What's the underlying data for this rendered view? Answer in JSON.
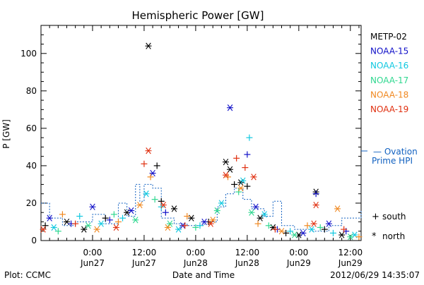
{
  "chart_data": {
    "type": "scatter",
    "title": "Hemispheric Power [GW]",
    "xlabel": "Date and Time",
    "ylabel": "P [GW]",
    "ylim": [
      0,
      115
    ],
    "xlim": [
      "2012-06-26 12:00",
      "2012-06-29 14:30"
    ],
    "grid": false,
    "y_ticks": [
      0,
      20,
      40,
      60,
      80,
      100
    ],
    "x_ticks": [
      {
        "t": "2012-06-27 00:00",
        "time": "0:00",
        "date": "Jun27"
      },
      {
        "t": "2012-06-27 12:00",
        "time": "12:00",
        "date": "Jun27"
      },
      {
        "t": "2012-06-28 00:00",
        "time": "0:00",
        "date": "Jun28"
      },
      {
        "t": "2012-06-28 12:00",
        "time": "12:00",
        "date": "Jun28"
      },
      {
        "t": "2012-06-29 00:00",
        "time": "0:00",
        "date": "Jun29"
      },
      {
        "t": "2012-06-29 12:00",
        "time": "12:00",
        "date": "Jun29"
      }
    ],
    "legend": {
      "placement": "right",
      "satellites": [
        {
          "name": "METP-02",
          "color": "#000000"
        },
        {
          "name": "NOAA-15",
          "color": "#1010c8"
        },
        {
          "name": "NOAA-16",
          "color": "#10c8e0"
        },
        {
          "name": "NOAA-17",
          "color": "#30d890"
        },
        {
          "name": "NOAA-18",
          "color": "#f08820"
        },
        {
          "name": "NOAA-19",
          "color": "#e03010"
        }
      ],
      "ovation": {
        "line1": "— Ovation",
        "line2": "Prime HPI",
        "color": "#1060c0"
      },
      "markers": [
        {
          "symbol": "+",
          "label": "south"
        },
        {
          "symbol": "*",
          "label": "north"
        }
      ]
    },
    "series": [
      {
        "name": "METP-02",
        "color": "#000000",
        "points": [
          [
            "2012-06-26 13:00",
            8,
            "+"
          ],
          [
            "2012-06-26 18:00",
            10,
            "*"
          ],
          [
            "2012-06-26 22:00",
            6,
            "*"
          ],
          [
            "2012-06-27 03:00",
            12,
            "+"
          ],
          [
            "2012-06-27 08:00",
            15,
            "*"
          ],
          [
            "2012-06-27 13:00",
            104,
            "*"
          ],
          [
            "2012-06-27 15:00",
            40,
            "+"
          ],
          [
            "2012-06-27 16:00",
            21,
            "+"
          ],
          [
            "2012-06-27 19:00",
            17,
            "*"
          ],
          [
            "2012-06-27 23:00",
            12,
            "*"
          ],
          [
            "2012-06-28 03:00",
            10,
            "+"
          ],
          [
            "2012-06-28 07:00",
            42,
            "*"
          ],
          [
            "2012-06-28 08:00",
            38,
            "*"
          ],
          [
            "2012-06-28 09:00",
            30,
            "+"
          ],
          [
            "2012-06-28 10:30",
            31,
            "*"
          ],
          [
            "2012-06-28 12:00",
            29,
            "+"
          ],
          [
            "2012-06-28 15:00",
            12,
            "*"
          ],
          [
            "2012-06-28 18:00",
            7,
            "*"
          ],
          [
            "2012-06-28 21:00",
            4,
            "+"
          ],
          [
            "2012-06-29 00:00",
            3,
            "*"
          ],
          [
            "2012-06-29 04:00",
            26,
            "*"
          ],
          [
            "2012-06-29 06:00",
            6,
            "+"
          ],
          [
            "2012-06-29 10:00",
            3,
            "*"
          ]
        ]
      },
      {
        "name": "NOAA-15",
        "color": "#1010c8",
        "points": [
          [
            "2012-06-26 14:00",
            12,
            "*"
          ],
          [
            "2012-06-26 19:00",
            9,
            "+"
          ],
          [
            "2012-06-27 00:00",
            18,
            "*"
          ],
          [
            "2012-06-27 04:00",
            11,
            "+"
          ],
          [
            "2012-06-27 09:00",
            16,
            "*"
          ],
          [
            "2012-06-27 14:00",
            36,
            "*"
          ],
          [
            "2012-06-27 17:00",
            15,
            "+"
          ],
          [
            "2012-06-27 21:00",
            8,
            "*"
          ],
          [
            "2012-06-28 02:00",
            10,
            "*"
          ],
          [
            "2012-06-28 08:00",
            71,
            "*"
          ],
          [
            "2012-06-28 12:00",
            46,
            "+"
          ],
          [
            "2012-06-28 14:00",
            18,
            "*"
          ],
          [
            "2012-06-28 19:00",
            6,
            "+"
          ],
          [
            "2012-06-29 01:00",
            4,
            "*"
          ],
          [
            "2012-06-29 04:00",
            25,
            "+"
          ],
          [
            "2012-06-29 07:00",
            9,
            "*"
          ],
          [
            "2012-06-29 11:00",
            5,
            "+"
          ]
        ]
      },
      {
        "name": "NOAA-16",
        "color": "#10c8e0",
        "points": [
          [
            "2012-06-26 15:00",
            7,
            "*"
          ],
          [
            "2012-06-26 21:00",
            13,
            "+"
          ],
          [
            "2012-06-27 02:00",
            9,
            "*"
          ],
          [
            "2012-06-27 07:00",
            12,
            "+"
          ],
          [
            "2012-06-27 12:30",
            25,
            "*"
          ],
          [
            "2012-06-27 16:00",
            18,
            "+"
          ],
          [
            "2012-06-27 20:00",
            6,
            "*"
          ],
          [
            "2012-06-28 01:00",
            8,
            "+"
          ],
          [
            "2012-06-28 06:00",
            20,
            "*"
          ],
          [
            "2012-06-28 11:00",
            32,
            "*"
          ],
          [
            "2012-06-28 12:30",
            55,
            "+"
          ],
          [
            "2012-06-28 16:00",
            14,
            "*"
          ],
          [
            "2012-06-28 22:00",
            5,
            "+"
          ],
          [
            "2012-06-29 03:00",
            6,
            "*"
          ],
          [
            "2012-06-29 08:00",
            4,
            "+"
          ],
          [
            "2012-06-29 13:00",
            3,
            "*"
          ]
        ]
      },
      {
        "name": "NOAA-17",
        "color": "#30d890",
        "points": [
          [
            "2012-06-26 16:00",
            5,
            "+"
          ],
          [
            "2012-06-26 23:00",
            8,
            "*"
          ],
          [
            "2012-06-27 05:00",
            14,
            "+"
          ],
          [
            "2012-06-27 10:00",
            11,
            "*"
          ],
          [
            "2012-06-27 14:30",
            22,
            "+"
          ],
          [
            "2012-06-27 18:00",
            9,
            "*"
          ],
          [
            "2012-06-28 00:00",
            7,
            "+"
          ],
          [
            "2012-06-28 05:00",
            16,
            "*"
          ],
          [
            "2012-06-28 10:00",
            26,
            "+"
          ],
          [
            "2012-06-28 13:00",
            15,
            "*"
          ],
          [
            "2012-06-28 17:00",
            8,
            "+"
          ],
          [
            "2012-06-28 23:00",
            3,
            "*"
          ],
          [
            "2012-06-29 05:00",
            7,
            "+"
          ],
          [
            "2012-06-29 12:00",
            2,
            "*"
          ]
        ]
      },
      {
        "name": "NOAA-18",
        "color": "#f08820",
        "points": [
          [
            "2012-06-26 17:00",
            14,
            "+"
          ],
          [
            "2012-06-27 01:00",
            6,
            "*"
          ],
          [
            "2012-06-27 06:00",
            10,
            "+"
          ],
          [
            "2012-06-27 11:00",
            19,
            "*"
          ],
          [
            "2012-06-27 13:30",
            34,
            "+"
          ],
          [
            "2012-06-27 17:30",
            7,
            "*"
          ],
          [
            "2012-06-27 22:00",
            13,
            "+"
          ],
          [
            "2012-06-28 04:00",
            11,
            "*"
          ],
          [
            "2012-06-28 07:30",
            34,
            "+"
          ],
          [
            "2012-06-28 10:30",
            28,
            "*"
          ],
          [
            "2012-06-28 14:30",
            9,
            "+"
          ],
          [
            "2012-06-28 20:00",
            5,
            "*"
          ],
          [
            "2012-06-29 02:00",
            8,
            "+"
          ],
          [
            "2012-06-29 09:00",
            17,
            "*"
          ],
          [
            "2012-06-29 14:00",
            2,
            "+"
          ]
        ]
      },
      {
        "name": "NOAA-19",
        "color": "#e03010",
        "points": [
          [
            "2012-06-26 12:30",
            6,
            "*"
          ],
          [
            "2012-06-26 20:00",
            9,
            "+"
          ],
          [
            "2012-06-27 05:30",
            7,
            "*"
          ],
          [
            "2012-06-27 12:00",
            41,
            "+"
          ],
          [
            "2012-06-27 13:00",
            48,
            "*"
          ],
          [
            "2012-06-27 16:30",
            19,
            "*"
          ],
          [
            "2012-06-27 21:30",
            8,
            "+"
          ],
          [
            "2012-06-28 03:30",
            9,
            "*"
          ],
          [
            "2012-06-28 07:00",
            35,
            "*"
          ],
          [
            "2012-06-28 09:30",
            44,
            "+"
          ],
          [
            "2012-06-28 11:30",
            39,
            "+"
          ],
          [
            "2012-06-28 13:30",
            34,
            "*"
          ],
          [
            "2012-06-28 18:30",
            6,
            "+"
          ],
          [
            "2012-06-29 03:30",
            9,
            "*"
          ],
          [
            "2012-06-29 04:00",
            19,
            "*"
          ],
          [
            "2012-06-29 10:30",
            6,
            "+"
          ]
        ]
      }
    ],
    "ovation_hpi": {
      "name": "Ovation Prime HPI",
      "color": "#1060c0",
      "points": [
        [
          "2012-06-26 12:00",
          20
        ],
        [
          "2012-06-26 14:00",
          12
        ],
        [
          "2012-06-26 17:00",
          8
        ],
        [
          "2012-06-26 20:00",
          10
        ],
        [
          "2012-06-27 00:00",
          14
        ],
        [
          "2012-06-27 03:00",
          9
        ],
        [
          "2012-06-27 06:00",
          20
        ],
        [
          "2012-06-27 08:00",
          13
        ],
        [
          "2012-06-27 10:00",
          30
        ],
        [
          "2012-06-27 11:00",
          21
        ],
        [
          "2012-06-27 12:00",
          30
        ],
        [
          "2012-06-27 14:00",
          28
        ],
        [
          "2012-06-27 16:00",
          12
        ],
        [
          "2012-06-27 19:00",
          9
        ],
        [
          "2012-06-27 22:00",
          8
        ],
        [
          "2012-06-28 02:00",
          10
        ],
        [
          "2012-06-28 05:00",
          18
        ],
        [
          "2012-06-28 07:00",
          25
        ],
        [
          "2012-06-28 09:00",
          28
        ],
        [
          "2012-06-28 11:00",
          22
        ],
        [
          "2012-06-28 13:00",
          17
        ],
        [
          "2012-06-28 16:00",
          13
        ],
        [
          "2012-06-28 18:00",
          21
        ],
        [
          "2012-06-28 20:00",
          8
        ],
        [
          "2012-06-28 23:00",
          6
        ],
        [
          "2012-06-29 03:00",
          5
        ],
        [
          "2012-06-29 07:00",
          8
        ],
        [
          "2012-06-29 10:00",
          12
        ],
        [
          "2012-06-29 14:30",
          16
        ]
      ]
    }
  },
  "footer": {
    "left": "Plot: CCMC",
    "center": "Date and Time",
    "right": "2012/06/29 14:35:07"
  }
}
